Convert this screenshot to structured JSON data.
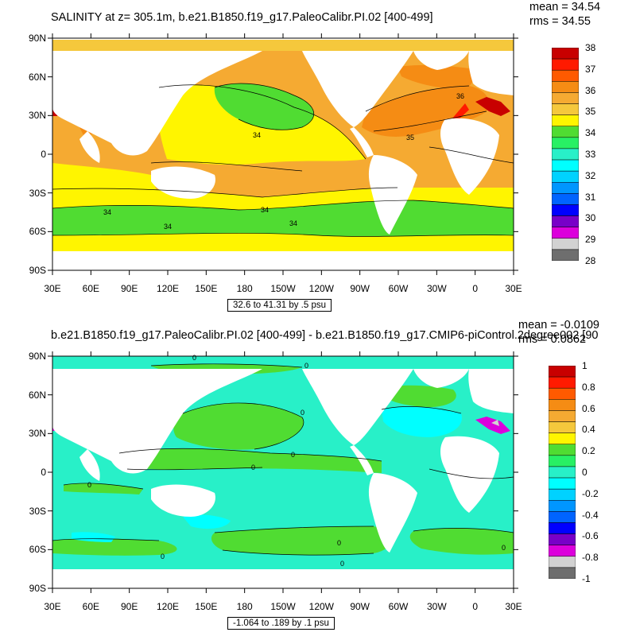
{
  "panels": [
    {
      "title": "SALINITY at z= 305.1m, b.e21.B1850.f19_g17.PaleoCalibr.PI.02 [400-499]",
      "mean_text": "mean = 34.54",
      "rms_text": "rms = 34.55",
      "range_text": "32.6 to 41.31 by .5 psu",
      "lat_labels": [
        "90N",
        "60N",
        "30N",
        "0",
        "30S",
        "60S",
        "90S"
      ],
      "lon_labels": [
        "30E",
        "60E",
        "90E",
        "120E",
        "150E",
        "180",
        "150W",
        "120W",
        "90W",
        "60W",
        "30W",
        "0",
        "30E"
      ],
      "colorbar_labels": [
        "38",
        "37",
        "36",
        "35",
        "34",
        "33",
        "32",
        "31",
        "30",
        "29",
        "28"
      ],
      "colorbar_colors": [
        "#c80000",
        "#ff1a00",
        "#ff5a00",
        "#f58c14",
        "#f5aa32",
        "#f5c83c",
        "#fff500",
        "#50dc32",
        "#28f064",
        "#28f0c8",
        "#00ffff",
        "#00d2ff",
        "#0096ff",
        "#0064ff",
        "#0000ff",
        "#7800c8",
        "#dc00dc",
        "#d2d2d2",
        "#6e6e6e"
      ],
      "contour_labels": [
        "34",
        "34",
        "34",
        "34",
        "34",
        "35",
        "36"
      ]
    },
    {
      "title": "b.e21.B1850.f19_g17.PaleoCalibr.PI.02 [400-499] - b.e21.B1850.f19_g17.CMIP6-piControl.2degree002 [90",
      "mean_text": "mean = -0.0109",
      "rms_text": "rms = 0.0862",
      "range_text": "-1.064 to .189 by .1 psu",
      "lat_labels": [
        "90N",
        "60N",
        "30N",
        "0",
        "30S",
        "60S",
        "90S"
      ],
      "lon_labels": [
        "30E",
        "60E",
        "90E",
        "120E",
        "150E",
        "180",
        "150W",
        "120W",
        "90W",
        "60W",
        "30W",
        "0",
        "30E"
      ],
      "colorbar_labels": [
        "1",
        "0.8",
        "0.6",
        "0.4",
        "0.2",
        "0",
        "-0.2",
        "-0.4",
        "-0.6",
        "-0.8",
        "-1"
      ],
      "colorbar_colors": [
        "#c80000",
        "#ff1a00",
        "#ff5a00",
        "#f58c14",
        "#f5aa32",
        "#f5c83c",
        "#fff500",
        "#50dc32",
        "#28f064",
        "#28f0c8",
        "#00ffff",
        "#00d2ff",
        "#0096ff",
        "#0064ff",
        "#0000ff",
        "#7800c8",
        "#dc00dc",
        "#d2d2d2",
        "#6e6e6e"
      ],
      "contour_labels": [
        "0",
        "0",
        "0",
        "0",
        "0",
        "0",
        "0",
        "0",
        "0",
        "0"
      ]
    }
  ]
}
